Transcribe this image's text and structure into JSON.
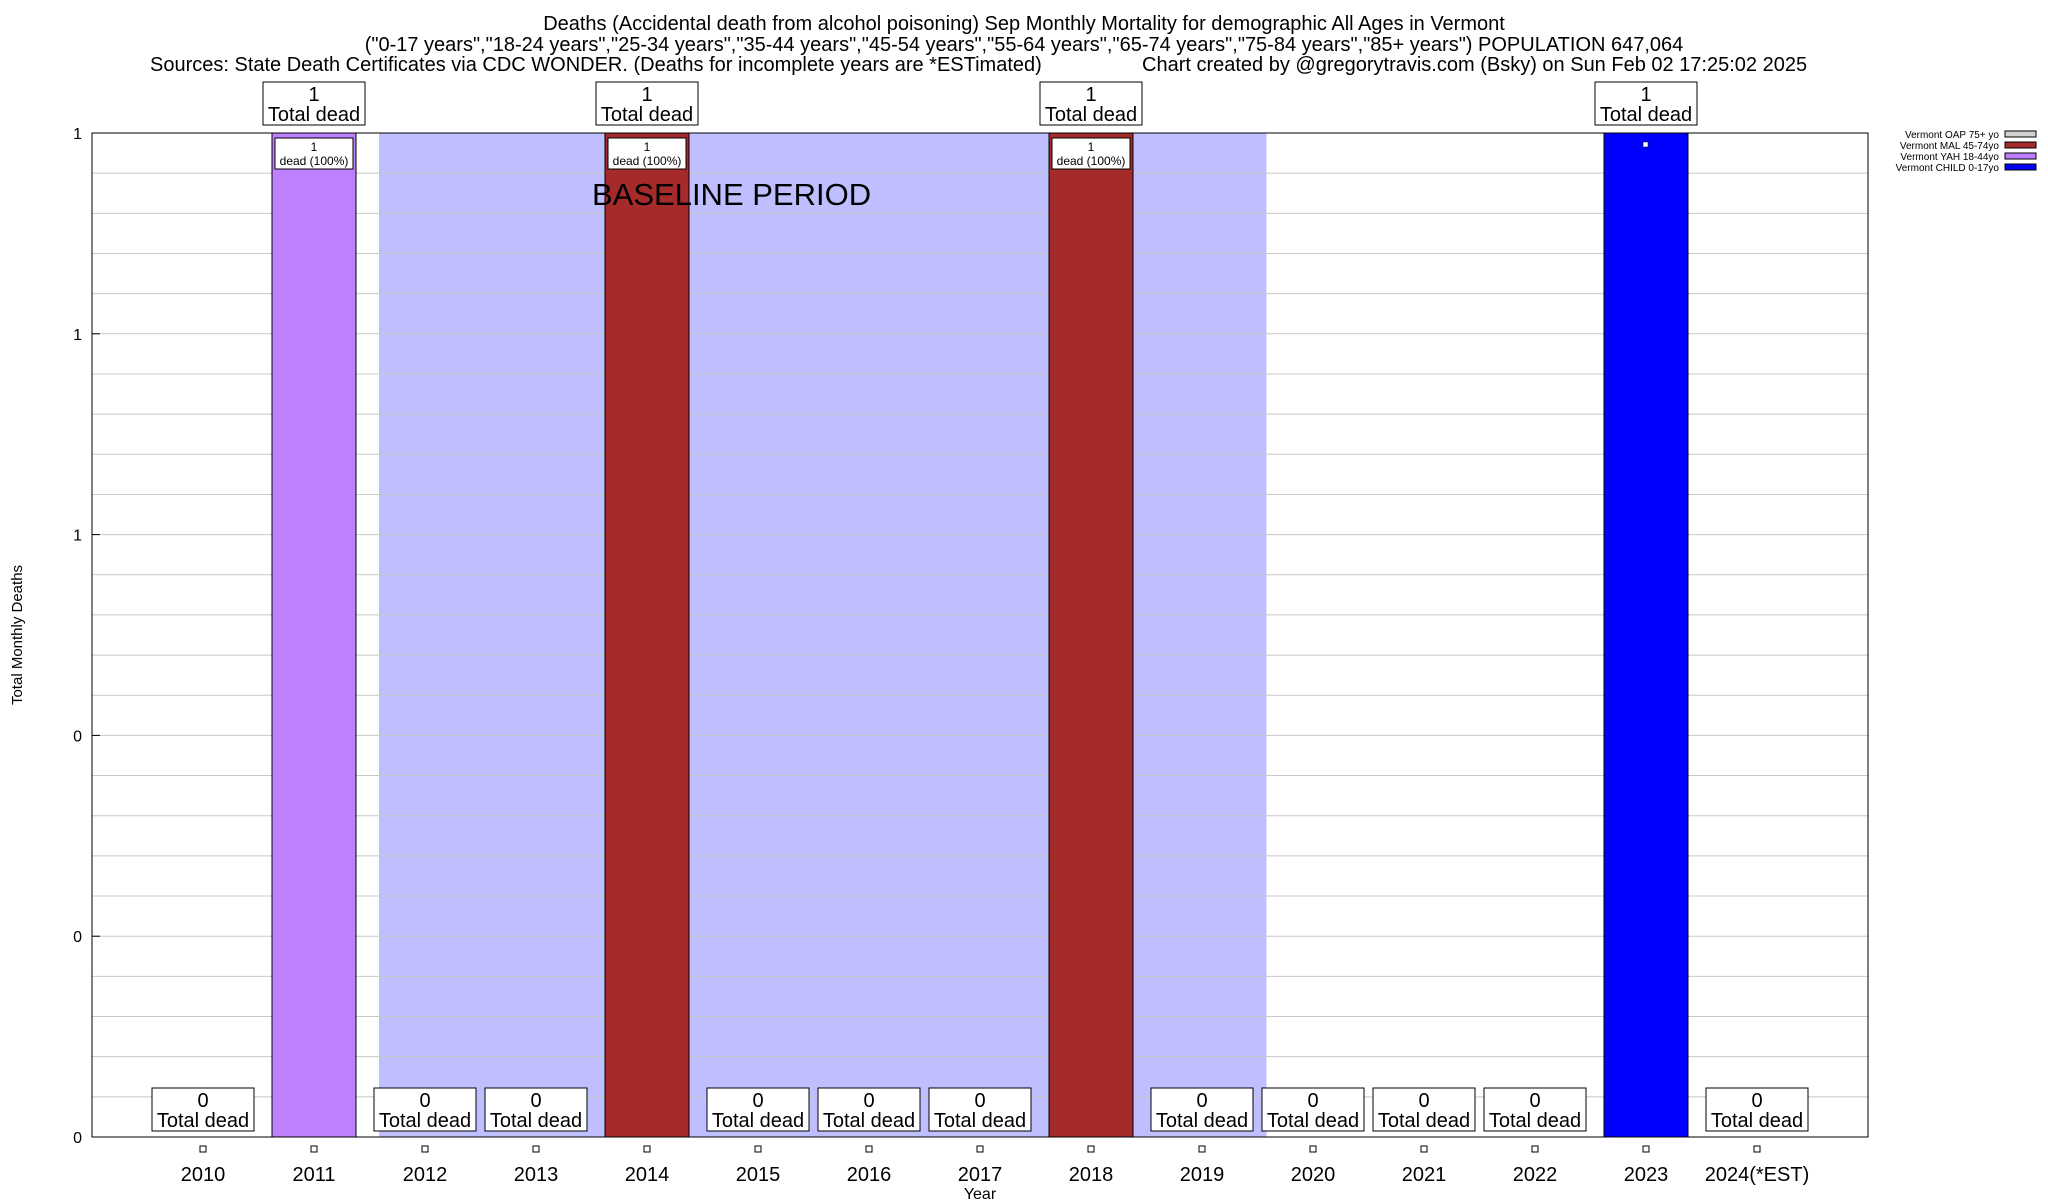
{
  "chart_data": {
    "type": "bar",
    "title": "Deaths (Accidental death from alcohol poisoning) Sep Monthly Mortality for demographic All Ages in Vermont",
    "subtitle": "(\"0-17 years\",\"18-24 years\",\"25-34 years\",\"35-44 years\",\"45-54 years\",\"55-64 years\",\"65-74 years\",\"75-84 years\",\"85+ years\") POPULATION 647,064",
    "sources": "Sources: State Death Certificates via CDC WONDER. (Deaths for incomplete years are *ESTimated)",
    "credit": "Chart created by @gregorytravis.com (Bsky) on Sun Feb 02 17:25:02 2025",
    "xlabel": "Year",
    "ylabel": "Total Monthly Deaths",
    "ylim": [
      0,
      1
    ],
    "y_ticks": [
      {
        "value": 0,
        "label": "0"
      },
      {
        "value": 0.2,
        "label": "0"
      },
      {
        "value": 0.4,
        "label": "0"
      },
      {
        "value": 0.6,
        "label": "1"
      },
      {
        "value": 0.8,
        "label": "1"
      },
      {
        "value": 1.0,
        "label": "1"
      }
    ],
    "grid": true,
    "legend_position": "top-right",
    "baseline_label": "BASELINE PERIOD",
    "baseline_range": [
      "2012",
      "2019"
    ],
    "baseline_color": "#bfbfff",
    "categories": [
      "2010",
      "2011",
      "2012",
      "2013",
      "2014",
      "2015",
      "2016",
      "2017",
      "2018",
      "2019",
      "2020",
      "2021",
      "2022",
      "2023",
      "2024(*EST)"
    ],
    "series": [
      {
        "name": "Vermont OAP 75+ yo",
        "color": "#d3d3d3",
        "values": [
          0,
          0,
          0,
          0,
          0,
          0,
          0,
          0,
          0,
          0,
          0,
          0,
          0,
          0,
          0
        ]
      },
      {
        "name": "Vermont MAL 45-74yo",
        "color": "#a52a2a",
        "values": [
          0,
          0,
          0,
          0,
          1,
          0,
          0,
          0,
          1,
          0,
          0,
          0,
          0,
          0,
          0
        ]
      },
      {
        "name": "Vermont YAH 18-44yo",
        "color": "#bf80ff",
        "values": [
          0,
          1,
          0,
          0,
          0,
          0,
          0,
          0,
          0,
          0,
          0,
          0,
          0,
          0,
          0
        ]
      },
      {
        "name": "Vermont CHILD 0-17yo",
        "color": "#0000ff",
        "values": [
          0,
          0,
          0,
          0,
          0,
          0,
          0,
          0,
          0,
          0,
          0,
          0,
          0,
          1,
          0
        ]
      }
    ],
    "totals": [
      0,
      1,
      0,
      0,
      1,
      0,
      0,
      0,
      1,
      0,
      0,
      0,
      0,
      1,
      0
    ],
    "total_label": "Total dead",
    "segment_labels": [
      {
        "category": "2011",
        "count": "1",
        "text": "dead (100%)"
      },
      {
        "category": "2014",
        "count": "1",
        "text": "dead (100%)"
      },
      {
        "category": "2018",
        "count": "1",
        "text": "dead (100%)"
      }
    ]
  }
}
